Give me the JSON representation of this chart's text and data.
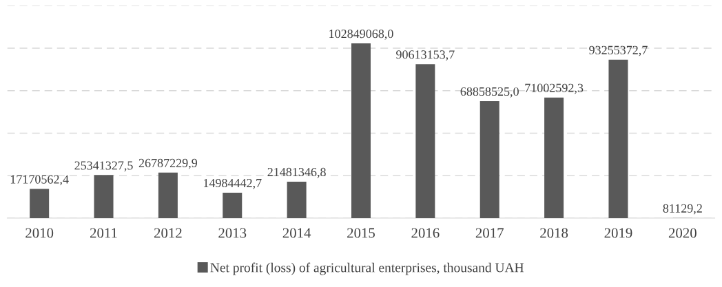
{
  "chart_data": {
    "type": "bar",
    "categories": [
      "2010",
      "2011",
      "2012",
      "2013",
      "2014",
      "2015",
      "2016",
      "2017",
      "2018",
      "2019",
      "2020"
    ],
    "series": [
      {
        "name": "Net profit (loss) of agricultural enterprises, thousand UAH",
        "color": "#595959",
        "values": [
          17170562.4,
          25341327.5,
          26787229.9,
          14984442.7,
          21481346.8,
          102849068.0,
          90613153.7,
          68858525.0,
          71002592.3,
          93255372.7,
          81129.2
        ],
        "value_labels": [
          "17170562,4",
          "25341327,5",
          "26787229,9",
          "14984442,7",
          "21481346,8",
          "102849068,0",
          "90613153,7",
          "68858525,0",
          "71002592,3",
          "93255372,7",
          "81129,2"
        ]
      }
    ],
    "ylim": [
      0,
      125000000
    ],
    "yticks": [
      {
        "value": 0,
        "label": null
      },
      {
        "value": 25000000,
        "label": null
      },
      {
        "value": 50000000,
        "label": null
      },
      {
        "value": 75000000,
        "label": null
      },
      {
        "value": 100000000,
        "label": null
      },
      {
        "value": 125000000,
        "label": null
      }
    ],
    "tick_labels": "x",
    "grid": "y",
    "legend": "bottom"
  }
}
